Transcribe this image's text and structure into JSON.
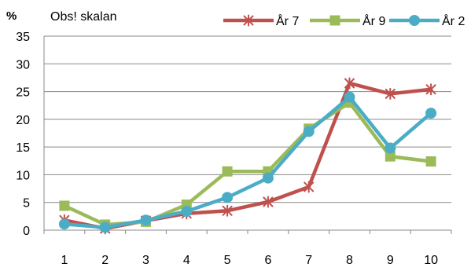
{
  "chart_data": {
    "type": "line",
    "ylabel": "%",
    "annotation": "Obs! skalan",
    "categories": [
      "1",
      "2",
      "3",
      "4",
      "5",
      "6",
      "7",
      "8",
      "9",
      "10"
    ],
    "ylim": [
      0,
      35
    ],
    "yticks": [
      0,
      5,
      10,
      15,
      20,
      25,
      30,
      35
    ],
    "grid": "horizontal",
    "legend_position": "top-right",
    "series": [
      {
        "name": "År 7",
        "color": "#C0504D",
        "marker": "star",
        "values": [
          1.8,
          0.3,
          1.7,
          3.0,
          3.5,
          5.1,
          7.8,
          26.5,
          24.6,
          25.4
        ]
      },
      {
        "name": "År 9",
        "color": "#9BBB59",
        "marker": "square",
        "values": [
          4.4,
          1.0,
          1.5,
          4.6,
          10.6,
          10.6,
          18.3,
          23.0,
          13.3,
          12.4
        ]
      },
      {
        "name": "År 2",
        "color": "#4BACC6",
        "marker": "circle",
        "values": [
          1.1,
          0.5,
          1.8,
          3.4,
          5.9,
          9.4,
          17.8,
          24.0,
          14.8,
          21.1
        ]
      }
    ]
  }
}
